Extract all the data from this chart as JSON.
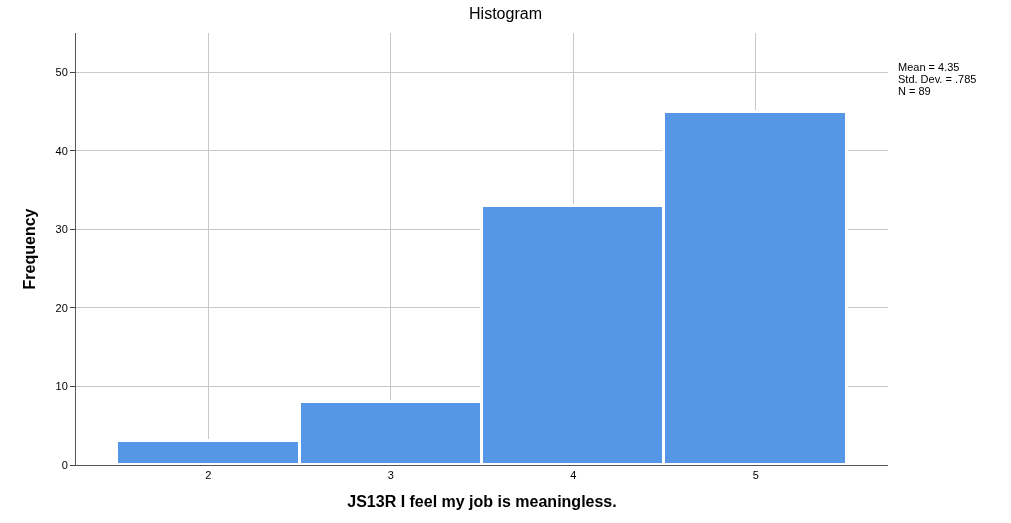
{
  "chart_data": {
    "type": "histogram",
    "title": "Histogram",
    "xlabel": "JS13R I feel my job is meaningless.",
    "ylabel": "Frequency",
    "bins": [
      1.5,
      2.5,
      3.5,
      4.5,
      5.5
    ],
    "values": [
      3,
      8,
      33,
      45
    ],
    "color": "#5596e6",
    "xlim": [
      1.275,
      5.725
    ],
    "xticks": [
      2,
      3,
      4,
      5
    ],
    "ylim": [
      0,
      55
    ],
    "yticks": [
      0,
      10,
      20,
      30,
      40,
      50
    ],
    "grid": true,
    "annotations": [
      "Mean = 4.35",
      "Std. Dev. = .785",
      "N = 89"
    ]
  }
}
